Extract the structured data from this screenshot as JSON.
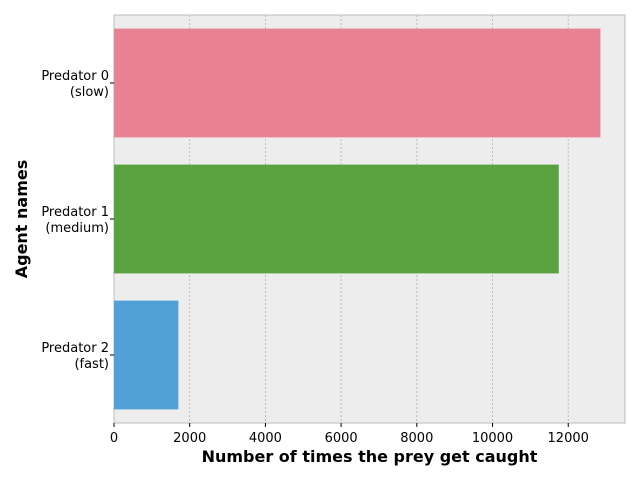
{
  "chart_data": {
    "type": "bar",
    "orientation": "horizontal",
    "categories": [
      [
        "Predator 0",
        "(slow)"
      ],
      [
        "Predator 1",
        "(medium)"
      ],
      [
        "Predator 2",
        "(fast)"
      ]
    ],
    "values": [
      12850,
      11750,
      1700
    ],
    "colors": [
      "#e88193",
      "#59a23f",
      "#52a0d8"
    ],
    "xlabel": "Number of times the prey get caught",
    "ylabel": "Agent names",
    "xlim": [
      0,
      13500
    ],
    "xticks": [
      0,
      2000,
      4000,
      6000,
      8000,
      10000,
      12000
    ],
    "grid": "x-dashed",
    "background": "#ededed"
  }
}
